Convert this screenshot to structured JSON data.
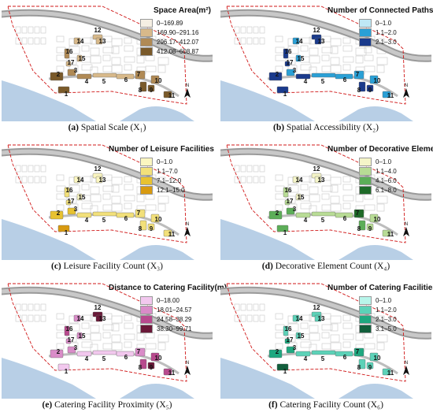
{
  "panels": [
    {
      "letter": "(a)",
      "caption": "Spatial Scale (X₁)",
      "legend_title": "Space Area(m²)",
      "legend": [
        {
          "label": "0–169.89",
          "color": "#f5efe3"
        },
        {
          "label": "169.90–291.16",
          "color": "#d8b98a"
        },
        {
          "label": "296.17–412.07",
          "color": "#b08a55"
        },
        {
          "label": "412.08–608.87",
          "color": "#7a5a2a"
        }
      ]
    },
    {
      "letter": "(b)",
      "caption": "Spatial Accessibility (X₂)",
      "legend_title": "Number of Connected Paths",
      "legend": [
        {
          "label": "0–1.0",
          "color": "#bfe8f5"
        },
        {
          "label": "1.1–2.0",
          "color": "#2aa0d6"
        },
        {
          "label": "2.1–3.0",
          "color": "#1a3a8c"
        }
      ]
    },
    {
      "letter": "(c)",
      "caption": "Leisure Facility Count (X₃)",
      "legend_title": "Number of Leisure Facilities",
      "legend": [
        {
          "label": "0–1.0",
          "color": "#fbf6c0"
        },
        {
          "label": "1.1–7.0",
          "color": "#f2e07a"
        },
        {
          "label": "7.1–12.0",
          "color": "#e8c230"
        },
        {
          "label": "12.1–15.0",
          "color": "#d89a10"
        }
      ]
    },
    {
      "letter": "(d)",
      "caption": "Decorative Element Count (X₄)",
      "legend_title": "Number of  Decorative Elements",
      "legend": [
        {
          "label": "0–1.0",
          "color": "#f5f5c8"
        },
        {
          "label": "1.1–4.0",
          "color": "#b8dc95"
        },
        {
          "label": "4.1–6.0",
          "color": "#5cae58"
        },
        {
          "label": "6.1–8.0",
          "color": "#1e6a28"
        }
      ]
    },
    {
      "letter": "(e)",
      "caption": "Catering Facility Proximity (X₅)",
      "legend_title": "Distance to Catering Facility(m)",
      "legend": [
        {
          "label": "0–18.00",
          "color": "#f2c8ee"
        },
        {
          "label": "18.01–24.57",
          "color": "#d98cc8"
        },
        {
          "label": "24.58–38.29",
          "color": "#b84a8e"
        },
        {
          "label": "38.30–99.71",
          "color": "#6a1838"
        }
      ]
    },
    {
      "letter": "(f)",
      "caption": "Catering Facility Count (X₆)",
      "legend_title": "Number of Catering Facilities",
      "legend": [
        {
          "label": "0–1.0",
          "color": "#b8f5ea"
        },
        {
          "label": "1.1–2.0",
          "color": "#5cd2b8"
        },
        {
          "label": "2.1–3.0",
          "color": "#1fa880"
        },
        {
          "label": "3.1–5.0",
          "color": "#125f3c"
        }
      ]
    }
  ],
  "labels": [
    "1",
    "2",
    "3",
    "4",
    "5",
    "6",
    "7",
    "8",
    "9",
    "10",
    "11",
    "12",
    "13",
    "14",
    "15",
    "16",
    "17"
  ],
  "north_symbol": "N"
}
